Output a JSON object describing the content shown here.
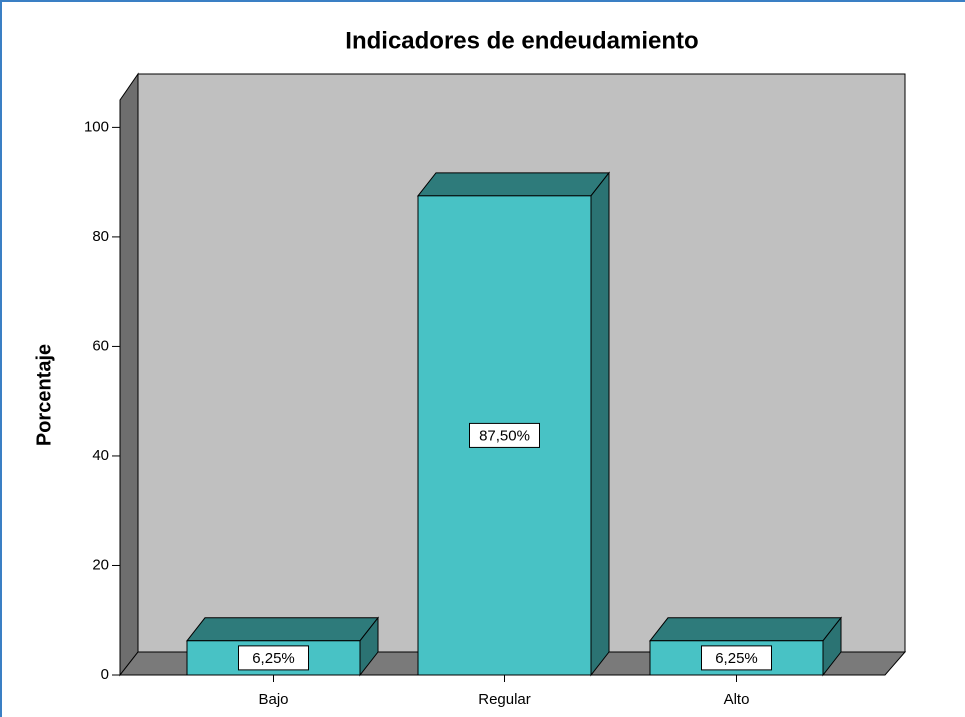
{
  "chart_data": {
    "type": "bar3d",
    "title": "Indicadores de endeudamiento",
    "y_label": "Porcentaje",
    "categories": [
      "Bajo",
      "Regular",
      "Alto"
    ],
    "values": [
      6.25,
      87.5,
      6.25
    ],
    "value_labels": [
      "6,25%",
      "87,50%",
      "6,25%"
    ],
    "color": "#48c2c5",
    "ylim": [
      0,
      105
    ],
    "yticks": [
      0,
      20,
      40,
      60,
      80,
      100
    ]
  }
}
